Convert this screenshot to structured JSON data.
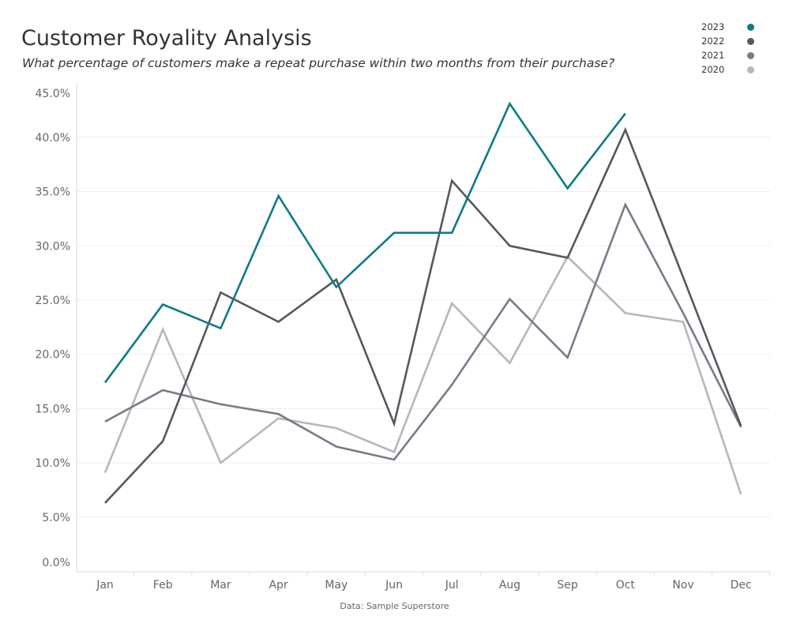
{
  "chart_data": {
    "type": "line",
    "title": "Customer Royality Analysis",
    "subtitle": "What percentage of customers make a repeat purchase within two months from their purchase?",
    "categories": [
      "Jan",
      "Feb",
      "Mar",
      "Apr",
      "May",
      "Jun",
      "Jul",
      "Aug",
      "Sep",
      "Oct",
      "Nov",
      "Dec"
    ],
    "ylim": [
      0,
      45
    ],
    "yticks": [
      0,
      5,
      10,
      15,
      20,
      25,
      30,
      35,
      40,
      45
    ],
    "ytick_labels": [
      "0.0%",
      "5.0%",
      "10.0%",
      "15.0%",
      "20.0%",
      "25.0%",
      "30.0%",
      "35.0%",
      "40.0%",
      "45.0%"
    ],
    "grid": true,
    "legend_position": "top-right",
    "series": [
      {
        "name": "2023",
        "color": "#0e7a88",
        "values": [
          17.4,
          24.6,
          22.4,
          34.6,
          26.2,
          31.2,
          31.2,
          43.1,
          35.3,
          42.2,
          null,
          null
        ]
      },
      {
        "name": "2022",
        "color": "#55585f",
        "values": [
          6.3,
          12.0,
          25.7,
          23.0,
          26.9,
          13.6,
          36.0,
          30.0,
          28.9,
          40.7,
          27.1,
          13.4
        ]
      },
      {
        "name": "2021",
        "color": "#767b87",
        "values": [
          13.8,
          16.7,
          15.4,
          14.5,
          11.5,
          10.3,
          17.2,
          25.1,
          19.7,
          33.8,
          23.8,
          13.3
        ]
      },
      {
        "name": "2020",
        "color": "#b5b7ba",
        "values": [
          9.1,
          22.3,
          10.0,
          14.1,
          13.2,
          11.0,
          24.7,
          19.2,
          29.0,
          23.8,
          23.0,
          7.1
        ]
      }
    ],
    "source": "Data: Sample Superstore"
  }
}
